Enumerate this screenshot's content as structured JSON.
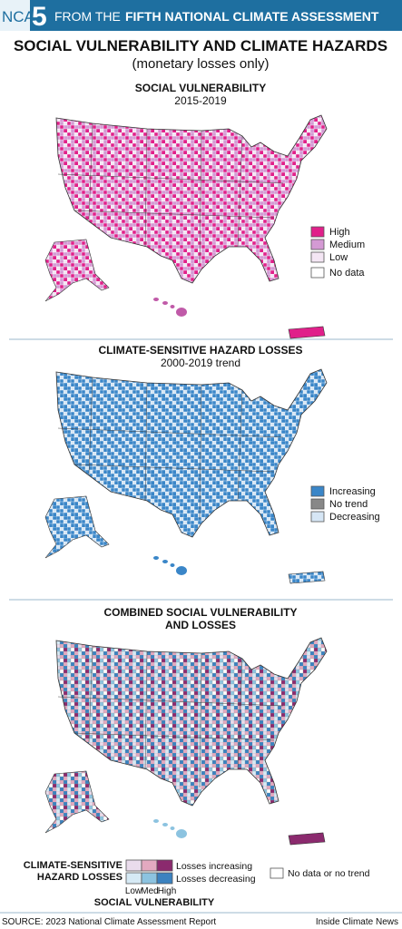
{
  "header": {
    "badge": "NCA",
    "number": "5",
    "lead": "FROM THE",
    "title": "FIFTH NATIONAL CLIMATE ASSESSMENT"
  },
  "title": "SOCIAL VULNERABILITY AND CLIMATE HAZARDS",
  "subtitle": "(monetary losses only)",
  "maps": [
    {
      "title": "SOCIAL VULNERABILITY",
      "subtitle": "2015-2019",
      "legend": [
        "High",
        "Medium",
        "Low",
        "No data"
      ]
    },
    {
      "title": "CLIMATE-SENSITIVE HAZARD LOSSES",
      "subtitle": "2000-2019 trend",
      "legend": [
        "Increasing",
        "No trend",
        "Decreasing"
      ]
    },
    {
      "title": [
        "COMBINED SOCIAL VULNERABILITY",
        "AND LOSSES"
      ],
      "legend": {
        "axis_title": [
          "CLIMATE-SENSITIVE",
          "HAZARD LOSSES"
        ],
        "rows": [
          "Losses increasing",
          "Losses decreasing"
        ],
        "columns": [
          "Low",
          "Med",
          "High"
        ],
        "columns_title": "SOCIAL VULNERABILITY",
        "no_data": "No data or no trend"
      }
    }
  ],
  "footer": {
    "source": "SOURCE: 2023 National Climate Assessment Report",
    "credit": "Inside Climate News"
  }
}
